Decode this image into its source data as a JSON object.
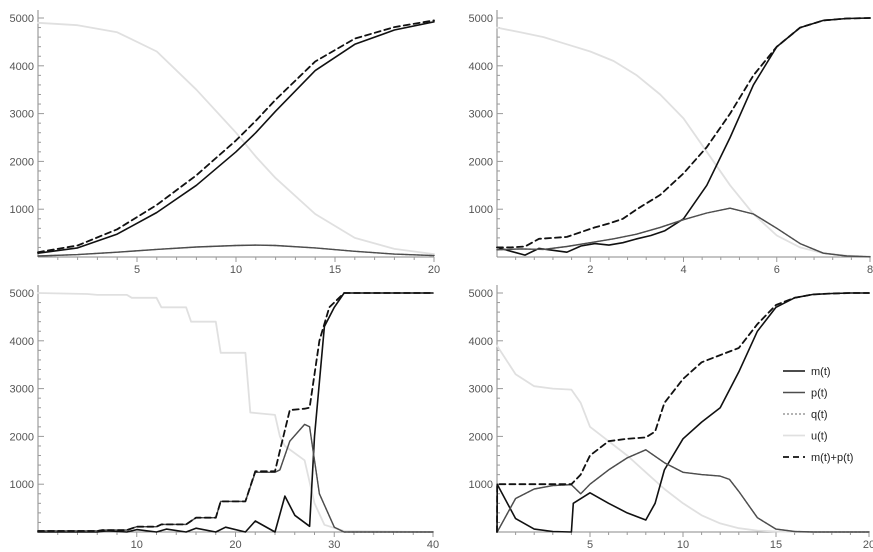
{
  "chart_data": [
    {
      "type": "line",
      "xlim": [
        0,
        20
      ],
      "ylim": [
        0,
        5000
      ],
      "xticks": [
        "5",
        "10",
        "15",
        "20"
      ],
      "yticks": [
        "1000",
        "2000",
        "3000",
        "4000",
        "5000"
      ],
      "series": [
        {
          "key": "u",
          "x": [
            0,
            2,
            4,
            6,
            8,
            10,
            11,
            12,
            14,
            16,
            18,
            20
          ],
          "y": [
            4900,
            4850,
            4700,
            4300,
            3500,
            2600,
            2100,
            1650,
            900,
            400,
            170,
            60
          ]
        },
        {
          "key": "m",
          "x": [
            0,
            2,
            4,
            6,
            8,
            10,
            11,
            12,
            14,
            16,
            18,
            20
          ],
          "y": [
            80,
            190,
            480,
            930,
            1500,
            2200,
            2600,
            3050,
            3900,
            4450,
            4750,
            4920
          ]
        },
        {
          "key": "q",
          "x": [
            0,
            2,
            4,
            6,
            8,
            10,
            11,
            12,
            14,
            16,
            18,
            20
          ],
          "y": [
            20,
            50,
            100,
            160,
            210,
            240,
            250,
            240,
            190,
            120,
            60,
            30
          ]
        },
        {
          "key": "p",
          "x": [
            0,
            2,
            4,
            6,
            8,
            10,
            11,
            12,
            14,
            16,
            18,
            20
          ],
          "y": [
            20,
            50,
            100,
            160,
            210,
            240,
            250,
            240,
            190,
            120,
            60,
            30
          ]
        },
        {
          "key": "mp",
          "x": [
            0,
            2,
            4,
            6,
            8,
            10,
            11,
            12,
            14,
            16,
            18,
            20
          ],
          "y": [
            100,
            240,
            580,
            1090,
            1710,
            2440,
            2850,
            3290,
            4090,
            4570,
            4810,
            4950
          ]
        }
      ]
    },
    {
      "type": "line",
      "xlim": [
        0,
        8
      ],
      "ylim": [
        0,
        5000
      ],
      "xticks": [
        "2",
        "4",
        "6",
        "8"
      ],
      "yticks": [
        "1000",
        "2000",
        "3000",
        "4000",
        "5000"
      ],
      "series": [
        {
          "key": "u",
          "x": [
            0,
            0.5,
            1,
            1.5,
            2,
            2.5,
            3,
            3.5,
            4,
            4.5,
            5,
            5.5,
            6,
            6.5,
            7,
            7.5,
            8
          ],
          "y": [
            4800,
            4700,
            4600,
            4450,
            4300,
            4100,
            3800,
            3400,
            2900,
            2200,
            1500,
            900,
            450,
            200,
            80,
            30,
            10
          ]
        },
        {
          "key": "m",
          "x": [
            0,
            0.3,
            0.6,
            0.9,
            1.2,
            1.5,
            1.8,
            2.1,
            2.4,
            2.7,
            3,
            3.3,
            3.6,
            4,
            4.5,
            5,
            5.5,
            6,
            6.5,
            7,
            7.5,
            8
          ],
          "y": [
            200,
            120,
            40,
            180,
            140,
            100,
            230,
            280,
            250,
            300,
            380,
            450,
            550,
            800,
            1500,
            2500,
            3600,
            4400,
            4800,
            4950,
            4990,
            5000
          ]
        },
        {
          "key": "q",
          "x": [
            0,
            0.5,
            1,
            1.5,
            2,
            2.5,
            3,
            3.5,
            4,
            4.5,
            5,
            5.5,
            6,
            6.5,
            7,
            7.5,
            8
          ],
          "y": [
            150,
            170,
            160,
            220,
            300,
            380,
            480,
            620,
            780,
            920,
            1020,
            900,
            600,
            280,
            80,
            20,
            5
          ]
        },
        {
          "key": "p",
          "x": [
            0,
            0.5,
            1,
            1.5,
            2,
            2.5,
            3,
            3.5,
            4,
            4.5,
            5,
            5.5,
            6,
            6.5,
            7,
            7.5,
            8
          ],
          "y": [
            150,
            170,
            160,
            220,
            300,
            380,
            480,
            620,
            780,
            920,
            1020,
            900,
            600,
            280,
            80,
            20,
            5
          ]
        },
        {
          "key": "mp",
          "x": [
            0,
            0.3,
            0.6,
            0.9,
            1.2,
            1.5,
            1.8,
            2.1,
            2.4,
            2.7,
            3,
            3.5,
            4,
            4.5,
            5,
            5.5,
            6,
            6.5,
            7,
            7.5,
            8
          ],
          "y": [
            200,
            200,
            220,
            380,
            400,
            420,
            520,
            620,
            700,
            800,
            1000,
            1300,
            1750,
            2300,
            3000,
            3800,
            4400,
            4800,
            4950,
            4990,
            5000
          ]
        }
      ]
    },
    {
      "type": "line",
      "xlim": [
        0,
        40
      ],
      "ylim": [
        0,
        5000
      ],
      "xticks": [
        "10",
        "20",
        "30",
        "40"
      ],
      "yticks": [
        "1000",
        "2000",
        "3000",
        "4000",
        "5000"
      ],
      "series": [
        {
          "key": "u",
          "x": [
            0,
            5,
            6,
            9,
            9.5,
            12,
            12.5,
            15,
            15.5,
            18,
            18.5,
            21,
            21.5,
            24,
            24.5,
            25,
            27,
            28,
            29,
            31,
            40
          ],
          "y": [
            5000,
            4980,
            4960,
            4960,
            4900,
            4900,
            4700,
            4700,
            4400,
            4400,
            3750,
            3750,
            2500,
            2450,
            2000,
            1800,
            1500,
            600,
            150,
            20,
            0
          ]
        },
        {
          "key": "m",
          "x": [
            0,
            6,
            7,
            9,
            10,
            12,
            13,
            15,
            16,
            18,
            19,
            21,
            22,
            24,
            25,
            26,
            27.5,
            28,
            29,
            30,
            31,
            32,
            40
          ],
          "y": [
            0,
            0,
            25,
            0,
            50,
            0,
            60,
            0,
            80,
            0,
            100,
            0,
            230,
            0,
            750,
            350,
            120,
            2000,
            4300,
            4700,
            5000,
            5000,
            5000
          ]
        },
        {
          "key": "q",
          "x": [
            0,
            6,
            6.5,
            9,
            10,
            12,
            12.5,
            15,
            16,
            18,
            18.5,
            21,
            22,
            24,
            24.5,
            25.5,
            27,
            27.5,
            28.5,
            30,
            31,
            40
          ],
          "y": [
            20,
            20,
            40,
            40,
            110,
            110,
            160,
            160,
            300,
            300,
            640,
            640,
            1250,
            1250,
            1300,
            1900,
            2250,
            2200,
            800,
            100,
            0,
            0
          ]
        },
        {
          "key": "p",
          "x": [
            0,
            6,
            6.5,
            9,
            10,
            12,
            12.5,
            15,
            16,
            18,
            18.5,
            21,
            22,
            24,
            24.5,
            25.5,
            27,
            27.5,
            28.5,
            30,
            31,
            40
          ],
          "y": [
            20,
            20,
            40,
            40,
            110,
            110,
            160,
            160,
            300,
            300,
            640,
            640,
            1250,
            1250,
            1300,
            1900,
            2250,
            2200,
            800,
            100,
            0,
            0
          ]
        },
        {
          "key": "mp",
          "x": [
            0,
            6,
            6.5,
            9,
            10,
            12,
            12.5,
            15,
            16,
            18,
            18.5,
            21,
            22,
            24,
            24.5,
            25.5,
            27,
            27.5,
            28.5,
            29.5,
            31,
            40
          ],
          "y": [
            20,
            20,
            40,
            40,
            110,
            110,
            160,
            160,
            300,
            300,
            640,
            640,
            1270,
            1270,
            1700,
            2550,
            2580,
            2600,
            4000,
            4700,
            5000,
            5000
          ]
        }
      ]
    },
    {
      "type": "line",
      "xlim": [
        0,
        20
      ],
      "ylim": [
        0,
        5000
      ],
      "xticks": [
        "5",
        "10",
        "15",
        "20"
      ],
      "yticks": [
        "1000",
        "2000",
        "3000",
        "4000",
        "5000"
      ],
      "series": [
        {
          "key": "u",
          "x": [
            0,
            1,
            2,
            3,
            4,
            4.5,
            5,
            6,
            7,
            8,
            9,
            10,
            11,
            12,
            13,
            14,
            15,
            16,
            18,
            20
          ],
          "y": [
            3900,
            3300,
            3050,
            3000,
            2980,
            2700,
            2200,
            1900,
            1600,
            1250,
            900,
            600,
            350,
            180,
            80,
            30,
            10,
            0,
            0,
            0
          ]
        },
        {
          "key": "m",
          "x": [
            0,
            0.01,
            1,
            2,
            3,
            4,
            4.1,
            5,
            6,
            7,
            8,
            8.5,
            9,
            10,
            11,
            12,
            13,
            14,
            15,
            16,
            17,
            18,
            19,
            20
          ],
          "y": [
            0,
            1000,
            280,
            60,
            10,
            0,
            600,
            820,
            600,
            400,
            250,
            600,
            1300,
            1950,
            2300,
            2600,
            3350,
            4200,
            4700,
            4900,
            4970,
            4990,
            5000,
            5000
          ]
        },
        {
          "key": "q",
          "x": [
            0,
            0.01,
            1,
            2,
            3,
            4,
            4.5,
            5,
            6,
            7,
            8,
            9,
            10,
            11,
            12,
            12.5,
            13,
            14,
            15,
            16,
            17,
            18,
            20
          ],
          "y": [
            0,
            0,
            700,
            900,
            970,
            990,
            800,
            1000,
            1300,
            1550,
            1720,
            1450,
            1250,
            1200,
            1170,
            1100,
            850,
            300,
            60,
            10,
            0,
            0,
            0
          ]
        },
        {
          "key": "p",
          "x": [
            0,
            0.01,
            1,
            2,
            3,
            4,
            4.5,
            5,
            6,
            7,
            8,
            9,
            10,
            11,
            12,
            12.5,
            13,
            14,
            15,
            16,
            17,
            18,
            20
          ],
          "y": [
            0,
            0,
            700,
            900,
            970,
            990,
            800,
            1000,
            1300,
            1550,
            1720,
            1450,
            1250,
            1200,
            1170,
            1100,
            850,
            300,
            60,
            10,
            0,
            0,
            0
          ]
        },
        {
          "key": "mp",
          "x": [
            0,
            0.01,
            1,
            2,
            3,
            4,
            4.5,
            5,
            6,
            7,
            8,
            8.5,
            9,
            10,
            11,
            12,
            13,
            14,
            15,
            16,
            17,
            18,
            19,
            20
          ],
          "y": [
            0,
            1000,
            1000,
            1000,
            1000,
            1000,
            1200,
            1600,
            1900,
            1950,
            1980,
            2100,
            2700,
            3200,
            3550,
            3700,
            3850,
            4350,
            4750,
            4900,
            4970,
            4990,
            5000,
            5000
          ]
        }
      ]
    }
  ],
  "legend": {
    "items": [
      {
        "key": "m",
        "label": "m(t)",
        "color": "#111111",
        "dash": "",
        "width": 1.6
      },
      {
        "key": "p",
        "label": "p(t)",
        "color": "#4d4d4d",
        "dash": "",
        "width": 1.4
      },
      {
        "key": "q",
        "label": "q(t)",
        "color": "#9a9a9a",
        "dash": "2,2",
        "width": 1.4
      },
      {
        "key": "u",
        "label": "u(t)",
        "color": "#e0e0e0",
        "dash": "",
        "width": 1.8
      },
      {
        "key": "mp",
        "label": "m(t)+p(t)",
        "color": "#111111",
        "dash": "6,4",
        "width": 1.8
      }
    ]
  }
}
